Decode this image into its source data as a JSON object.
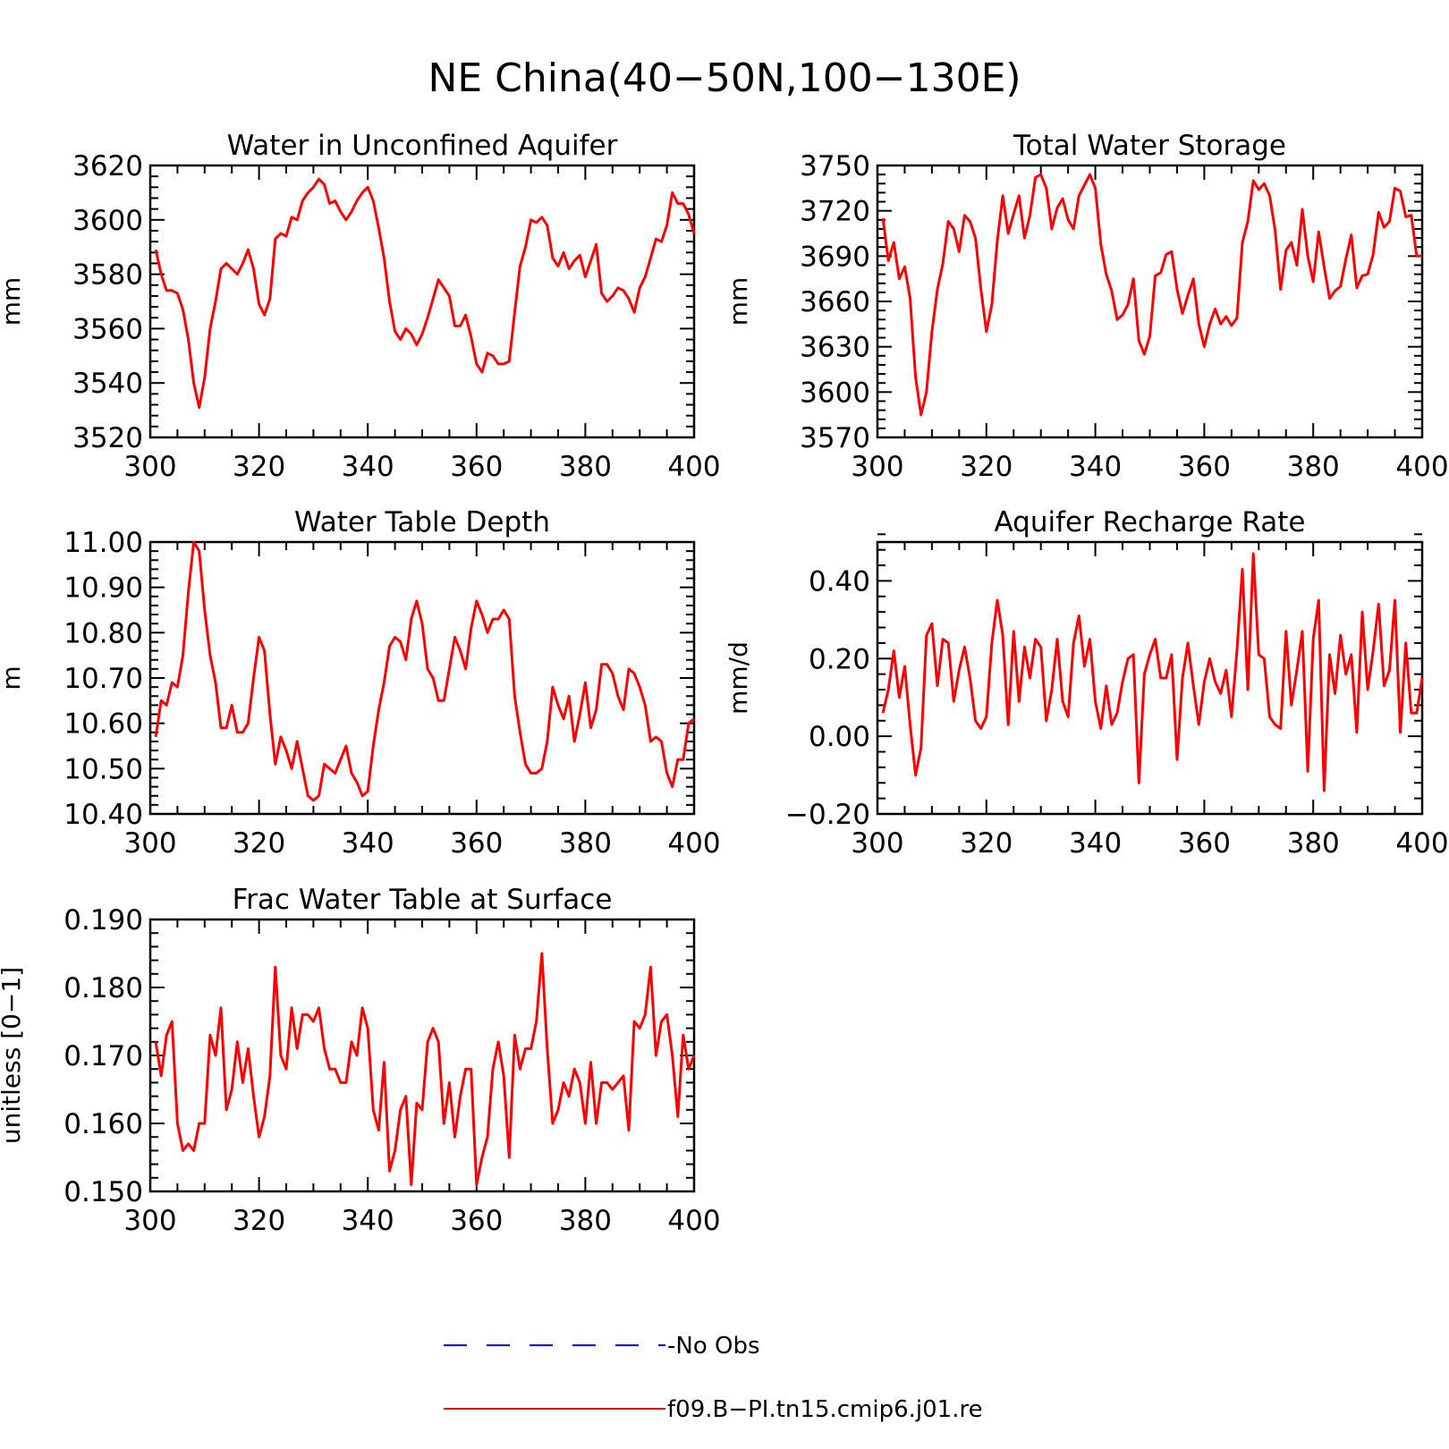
{
  "figure": {
    "title": "NE China(40−50N,100−130E)",
    "line_color": "#ff0000",
    "obs_color": "#0000ff"
  },
  "legend": {
    "items": [
      {
        "label": "-No Obs",
        "color": "#0000ff",
        "style": "dashed"
      },
      {
        "label": "f09.B−PI.tn15.cmip6.j01.re",
        "color": "#ff0000",
        "style": "solid"
      }
    ]
  },
  "chart_data": [
    {
      "type": "line",
      "title": "Water in Unconfined Aquifer",
      "ylabel": "mm",
      "xlim": [
        300,
        400
      ],
      "ylim": [
        3520,
        3620
      ],
      "xticks": [
        300,
        320,
        340,
        360,
        380,
        400
      ],
      "yticks": [
        3520,
        3540,
        3560,
        3580,
        3600,
        3620
      ],
      "ytick_labels": [
        "3520",
        "3540",
        "3560",
        "3580",
        "3600",
        "3620"
      ],
      "series": [
        {
          "x_start": 301,
          "values": [
            3589,
            3580,
            3574,
            3574,
            3573,
            3567,
            3556,
            3540,
            3531,
            3542,
            3560,
            3570,
            3582,
            3584,
            3582,
            3580,
            3584,
            3589,
            3582,
            3569,
            3565,
            3571,
            3593,
            3595,
            3594,
            3601,
            3600,
            3607,
            3610,
            3612,
            3615,
            3613,
            3606,
            3607,
            3603,
            3600,
            3603,
            3607,
            3610,
            3612,
            3607,
            3597,
            3586,
            3570,
            3559,
            3556,
            3560,
            3558,
            3554,
            3558,
            3564,
            3571,
            3578,
            3575,
            3572,
            3561,
            3561,
            3565,
            3557,
            3547,
            3544,
            3551,
            3550,
            3547,
            3547,
            3548,
            3566,
            3583,
            3590,
            3600,
            3599,
            3601,
            3598,
            3586,
            3583,
            3588,
            3582,
            3585,
            3587,
            3579,
            3585,
            3591,
            3573,
            3570,
            3572,
            3575,
            3574,
            3571,
            3566,
            3575,
            3579,
            3586,
            3593,
            3592,
            3598,
            3610,
            3606,
            3606,
            3602,
            3595
          ]
        }
      ]
    },
    {
      "type": "line",
      "title": "Total Water Storage",
      "ylabel": "mm",
      "xlim": [
        300,
        400
      ],
      "ylim": [
        3570,
        3750
      ],
      "xticks": [
        300,
        320,
        340,
        360,
        380,
        400
      ],
      "yticks": [
        3570,
        3600,
        3630,
        3660,
        3690,
        3720,
        3750
      ],
      "ytick_labels": [
        "3570",
        "3600",
        "3630",
        "3660",
        "3690",
        "3720",
        "3750"
      ],
      "series": [
        {
          "x_start": 301,
          "values": [
            3715,
            3687,
            3699,
            3675,
            3683,
            3662,
            3610,
            3585,
            3600,
            3640,
            3668,
            3685,
            3713,
            3708,
            3693,
            3717,
            3713,
            3702,
            3668,
            3640,
            3658,
            3700,
            3730,
            3705,
            3718,
            3730,
            3702,
            3717,
            3742,
            3744,
            3735,
            3708,
            3722,
            3728,
            3714,
            3708,
            3730,
            3737,
            3744,
            3735,
            3698,
            3678,
            3667,
            3648,
            3651,
            3658,
            3675,
            3634,
            3625,
            3637,
            3677,
            3679,
            3691,
            3693,
            3668,
            3652,
            3664,
            3675,
            3645,
            3630,
            3645,
            3655,
            3645,
            3650,
            3644,
            3649,
            3699,
            3713,
            3740,
            3734,
            3738,
            3730,
            3707,
            3668,
            3694,
            3699,
            3684,
            3721,
            3690,
            3673,
            3706,
            3683,
            3662,
            3667,
            3670,
            3688,
            3704,
            3669,
            3677,
            3678,
            3691,
            3719,
            3709,
            3713,
            3735,
            3733,
            3716,
            3717,
            3690,
            3690
          ]
        }
      ]
    },
    {
      "type": "line",
      "title": "Water Table Depth",
      "ylabel": "m",
      "xlim": [
        300,
        400
      ],
      "ylim": [
        10.4,
        11.0
      ],
      "xticks": [
        300,
        320,
        340,
        360,
        380,
        400
      ],
      "yticks": [
        10.4,
        10.5,
        10.6,
        10.7,
        10.8,
        10.9,
        11.0
      ],
      "ytick_labels": [
        "10.40",
        "10.50",
        "10.60",
        "10.70",
        "10.80",
        "10.90",
        "11.00"
      ],
      "series": [
        {
          "x_start": 301,
          "values": [
            10.57,
            10.65,
            10.64,
            10.69,
            10.68,
            10.75,
            10.89,
            11.0,
            10.98,
            10.85,
            10.75,
            10.69,
            10.59,
            10.59,
            10.64,
            10.58,
            10.58,
            10.6,
            10.7,
            10.79,
            10.76,
            10.62,
            10.51,
            10.57,
            10.54,
            10.5,
            10.56,
            10.5,
            10.44,
            10.43,
            10.44,
            10.51,
            10.5,
            10.49,
            10.52,
            10.55,
            10.49,
            10.47,
            10.44,
            10.45,
            10.55,
            10.63,
            10.69,
            10.77,
            10.79,
            10.78,
            10.74,
            10.83,
            10.87,
            10.82,
            10.72,
            10.7,
            10.65,
            10.65,
            10.72,
            10.79,
            10.76,
            10.72,
            10.81,
            10.87,
            10.84,
            10.8,
            10.83,
            10.83,
            10.85,
            10.83,
            10.66,
            10.58,
            10.51,
            10.49,
            10.49,
            10.5,
            10.56,
            10.68,
            10.64,
            10.61,
            10.66,
            10.56,
            10.62,
            10.69,
            10.59,
            10.63,
            10.73,
            10.73,
            10.71,
            10.66,
            10.63,
            10.72,
            10.71,
            10.68,
            10.64,
            10.56,
            10.57,
            10.56,
            10.49,
            10.46,
            10.52,
            10.52,
            10.6,
            10.61
          ]
        }
      ]
    },
    {
      "type": "line",
      "title": "Aquifer Recharge Rate",
      "ylabel": "mm/d",
      "xlim": [
        300,
        400
      ],
      "ylim": [
        -0.2,
        0.5
      ],
      "xticks": [
        300,
        320,
        340,
        360,
        380,
        400
      ],
      "yticks": [
        -0.2,
        0.0,
        0.2,
        0.4
      ],
      "ytick_labels": [
        "−0.20",
        "0.00",
        "0.20",
        "0.40"
      ],
      "series": [
        {
          "x_start": 301,
          "values": [
            0.06,
            0.12,
            0.22,
            0.1,
            0.18,
            0.03,
            -0.1,
            -0.03,
            0.26,
            0.29,
            0.13,
            0.25,
            0.24,
            0.09,
            0.17,
            0.23,
            0.15,
            0.04,
            0.02,
            0.05,
            0.24,
            0.35,
            0.26,
            0.03,
            0.27,
            0.09,
            0.23,
            0.15,
            0.25,
            0.23,
            0.04,
            0.12,
            0.25,
            0.09,
            0.05,
            0.24,
            0.31,
            0.18,
            0.25,
            0.09,
            0.02,
            0.13,
            0.03,
            0.06,
            0.14,
            0.2,
            0.21,
            -0.12,
            0.16,
            0.21,
            0.25,
            0.15,
            0.15,
            0.21,
            -0.06,
            0.15,
            0.24,
            0.13,
            0.03,
            0.14,
            0.2,
            0.14,
            0.11,
            0.17,
            0.05,
            0.22,
            0.43,
            0.12,
            0.47,
            0.21,
            0.2,
            0.05,
            0.03,
            0.02,
            0.27,
            0.08,
            0.17,
            0.27,
            -0.09,
            0.25,
            0.35,
            -0.14,
            0.21,
            0.11,
            0.26,
            0.16,
            0.21,
            0.01,
            0.32,
            0.12,
            0.22,
            0.34,
            0.13,
            0.17,
            0.35,
            0.01,
            0.24,
            0.06,
            0.06,
            0.15
          ]
        }
      ]
    },
    {
      "type": "line",
      "title": "Frac Water Table at Surface",
      "ylabel": "unitless [0−1]",
      "xlim": [
        300,
        400
      ],
      "ylim": [
        0.15,
        0.19
      ],
      "xticks": [
        300,
        320,
        340,
        360,
        380,
        400
      ],
      "yticks": [
        0.15,
        0.16,
        0.17,
        0.18,
        0.19
      ],
      "ytick_labels": [
        "0.150",
        "0.160",
        "0.170",
        "0.180",
        "0.190"
      ],
      "series": [
        {
          "x_start": 301,
          "values": [
            0.172,
            0.167,
            0.173,
            0.175,
            0.16,
            0.156,
            0.157,
            0.156,
            0.16,
            0.16,
            0.173,
            0.17,
            0.177,
            0.162,
            0.165,
            0.172,
            0.166,
            0.171,
            0.164,
            0.158,
            0.161,
            0.167,
            0.183,
            0.17,
            0.168,
            0.177,
            0.171,
            0.176,
            0.176,
            0.175,
            0.177,
            0.171,
            0.168,
            0.168,
            0.166,
            0.166,
            0.172,
            0.17,
            0.177,
            0.174,
            0.162,
            0.159,
            0.169,
            0.153,
            0.156,
            0.162,
            0.164,
            0.151,
            0.163,
            0.162,
            0.172,
            0.174,
            0.172,
            0.16,
            0.166,
            0.158,
            0.164,
            0.168,
            0.168,
            0.151,
            0.155,
            0.158,
            0.168,
            0.172,
            0.167,
            0.155,
            0.173,
            0.168,
            0.171,
            0.171,
            0.175,
            0.185,
            0.171,
            0.16,
            0.162,
            0.166,
            0.164,
            0.168,
            0.166,
            0.16,
            0.169,
            0.16,
            0.166,
            0.166,
            0.165,
            0.166,
            0.167,
            0.159,
            0.175,
            0.174,
            0.176,
            0.183,
            0.17,
            0.175,
            0.176,
            0.17,
            0.161,
            0.173,
            0.168,
            0.17
          ]
        }
      ]
    }
  ]
}
